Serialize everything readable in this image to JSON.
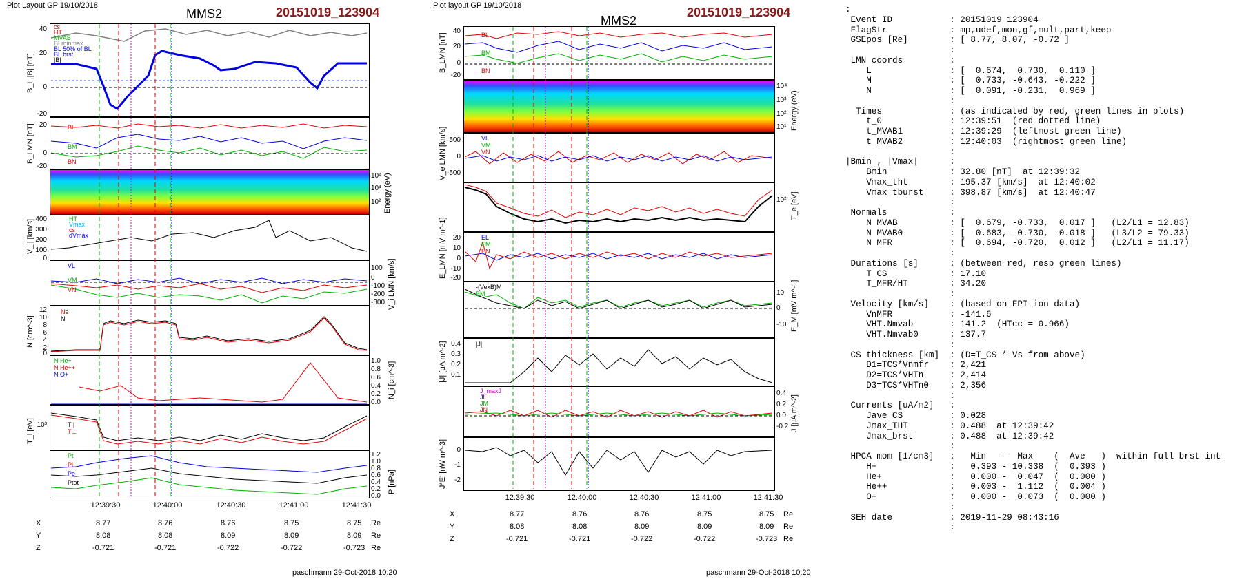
{
  "left": {
    "header": "Plot Layout GP 19/10/2018",
    "title": "MMS2",
    "event": "20151019_123904",
    "footer": "paschmann 29-Oct-2018 10:20",
    "times": [
      "12:39:30",
      "12:40:00",
      "12:40:30",
      "12:41:00",
      "12:41:30"
    ],
    "ylabels": [
      "B_L,|B| [nT]",
      "B_LMN [nT]",
      "Energy (eV)",
      "|V_i| [km/s]",
      "V_i LMN [km/s]",
      "N [cm^-3]",
      "N_i [cm^-3]",
      "T_i [eV]",
      "P [nPa]"
    ],
    "legends": {
      "b": [
        "cs",
        "HT",
        "MVAB",
        "BLminmax",
        "BL 50% of BL",
        "BL brst",
        "|B|"
      ],
      "blmn": [
        "BL",
        "BM",
        "BN"
      ],
      "v": [
        "HT",
        "Vmax",
        "cs",
        "dVmax"
      ],
      "vlmn": [
        "VL",
        "VM",
        "VN"
      ],
      "n": [
        "Ne",
        "Ni"
      ],
      "ni": [
        "N He+",
        "N He++",
        "N O+"
      ],
      "t": [
        "T||",
        "T⊥"
      ],
      "p": [
        "Pt",
        "Pi",
        "Pe",
        "Ptot"
      ]
    },
    "ticks": {
      "b": [
        "40",
        "20",
        "0",
        "-20"
      ],
      "blmn": [
        "20",
        "0",
        "-20"
      ],
      "e": [
        "10⁴",
        "10³",
        "10²"
      ],
      "v": [
        "400",
        "300",
        "200",
        "100",
        "0"
      ],
      "vlmn": [
        "100",
        "0",
        "-100",
        "-200",
        "-300"
      ],
      "n": [
        "12",
        "10",
        "8",
        "6",
        "4",
        "2",
        "0"
      ],
      "ni": [
        "1.0",
        "0.8",
        "0.6",
        "0.4",
        "0.2",
        "0.0"
      ],
      "t": [
        "10³"
      ],
      "p": [
        "1.2",
        "1.0",
        "0.8",
        "0.6",
        "0.4",
        "0.2",
        "0.0"
      ]
    }
  },
  "mid": {
    "header": "Plot layout GP 19/10/2018",
    "title": "MMS2",
    "event": "20151019_123904",
    "footer": "paschmann 29-Oct-2018 10:20",
    "times": [
      "12:39:30",
      "12:40:00",
      "12:40:30",
      "12:41:00",
      "12:41:30"
    ],
    "ylabels": [
      "B_LMN [nT]",
      "Energy (eV)",
      "V_e LMN [km/s]",
      "T_e [eV]",
      "E_LMN [mV m^-1]",
      "E_M [mV m^-1]",
      "|J| [μA m^-2]",
      "J [μA m^-2]",
      "J*E' [nW m^-3]"
    ],
    "legends": {
      "b": [
        "BL",
        "BM",
        "BN"
      ],
      "ve": [
        "VL",
        "VM",
        "VN"
      ],
      "e": [
        "EL",
        "EM",
        "EN"
      ],
      "em": [
        "-(VexB)M",
        "EM"
      ],
      "j": [
        "|J|"
      ],
      "jlmn": [
        "J_maxJ",
        "JL",
        "JM",
        "JN"
      ]
    },
    "ticks": {
      "b": [
        "40",
        "20",
        "0",
        "-20"
      ],
      "e": [
        "10⁴",
        "10³",
        "10²",
        "10¹"
      ],
      "ve": [
        "500",
        "0",
        "-500"
      ],
      "te": [
        "10²"
      ],
      "elmn": [
        "20",
        "10",
        "0",
        "-10",
        "-20"
      ],
      "em": [
        "10",
        "0",
        "-10"
      ],
      "j": [
        "0.4",
        "0.3",
        "0.2",
        "0.1"
      ],
      "jlmn": [
        "0.4",
        "0.2",
        "0.0",
        "-0.2"
      ],
      "je": [
        "0",
        "-1",
        "-2"
      ]
    }
  },
  "ephem": {
    "rows": [
      {
        "label": "X",
        "values": [
          "8.77",
          "8.76",
          "8.76",
          "8.75",
          "8.75"
        ],
        "unit": "Re"
      },
      {
        "label": "Y",
        "values": [
          "8.08",
          "8.08",
          "8.09",
          "8.09",
          "8.09"
        ],
        "unit": "Re"
      },
      {
        "label": "Z",
        "values": [
          "-0.721",
          "-0.721",
          "-0.722",
          "-0.722",
          "-0.723"
        ],
        "unit": "Re"
      }
    ]
  },
  "info_lines": [
    ":",
    " Event ID           : 20151019_123904",
    " FlagStr            : mp,udef,mon,gf,mult,part,keep",
    " GSEpos [Re]        : [ 8.77, 8.07, -0.72 ]",
    "                    :",
    " LMN coords         :",
    "    L               : [  0.674,  0.730,  0.110 ]",
    "    M               : [  0.733, -0.643, -0.222 ]",
    "    N               : [  0.091, -0.231,  0.969 ]",
    "                    :",
    "  Times             : (as indicated by red, green lines in plots)",
    "    t_0             : 12:39:51  (red dotted line)",
    "    t_MVAB1         : 12:39:29  (leftmost green line)",
    "    t_MVAB2         : 12:40:03  (rightmost green line)",
    "                    :",
    "|Bmin|, |Vmax|      :",
    "    Bmin            : 32.80 [nT]  at 12:39:32",
    "    Vmax_tht        : 195.37 [km/s]  at 12:40:02",
    "    Vmax_tburst     : 398.87 [km/s]  at 12:40:47",
    "                    :",
    " Normals            :",
    "    N MVAB          : [  0.679, -0.733,  0.017 ]   (L2/L1 = 12.83)",
    "    N MVAB0         : [  0.683, -0.730, -0.018 ]   (L3/L2 = 79.33)",
    "    N MFR           : [  0.694, -0.720,  0.012 ]   (L2/L1 = 11.17)",
    "                    :",
    " Durations [s]      : (between red, resp green lines)",
    "    T_CS            : 17.10",
    "    T_MFR/HT        : 34.20",
    "                    :",
    " Velocity [km/s]    : (based on FPI ion data)",
    "    VnMFR           : -141.6",
    "    VHT.Nmvab       : 141.2  (HTcc = 0.966)",
    "    VHT.Nmvab0      : 137.7",
    "                    :",
    " CS thickness [km]  : (D=T_CS * Vs from above)",
    "    D1=TCS*Vnmfr    : 2,421",
    "    D2=TCS*VHTn     : 2,414",
    "    D3=TCS*VHTn0    : 2,356",
    "                    :",
    " Currents [uA/m2]   :",
    "    Jave_CS         : 0.028",
    "    Jmax_THT        : 0.488  at 12:39:42",
    "    Jmax_brst       : 0.488  at 12:39:42",
    "                    :",
    " HPCA mom [1/cm3]   :   Min   -  Max    (  Ave   )  within full brst int",
    "    H+              :   0.393 - 10.338  (  0.393 )",
    "    He+             :   0.000 -  0.047  (  0.000 )",
    "    He++            :   0.003 -  1.112  (  0.004 )",
    "    O+              :   0.000 -  0.073  (  0.000 )",
    "                    :",
    " SEH date           : 2019-11-29 08:43:16",
    "                    :"
  ],
  "colors": {
    "red": "#e00000",
    "green": "#00b000",
    "blue": "#0000e0",
    "magenta": "#d000d0",
    "black": "#000000",
    "gray": "#808080",
    "dark_red": "#8b1a1a"
  }
}
